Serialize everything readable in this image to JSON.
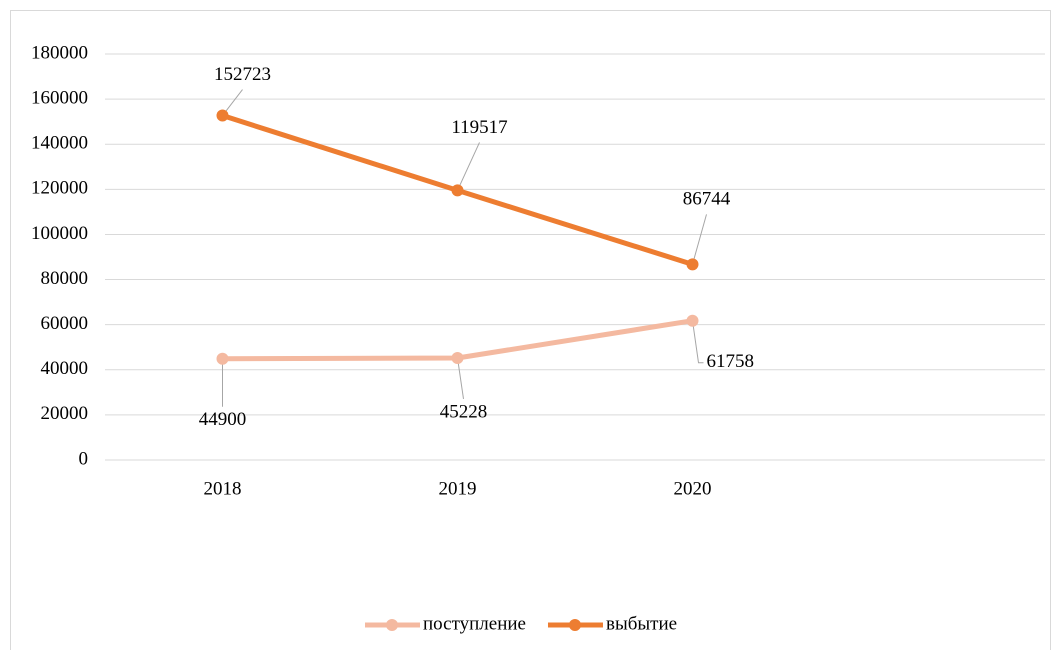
{
  "chart_data": {
    "type": "line",
    "categories": [
      "2018",
      "2019",
      "2020",
      null
    ],
    "series": [
      {
        "name": "поступление",
        "color": "#f4b9a0",
        "values": [
          44900,
          45228,
          61758,
          null
        ]
      },
      {
        "name": "выбытие",
        "color": "#ed7d31",
        "values": [
          152723,
          119517,
          86744,
          null
        ]
      }
    ],
    "ylim": [
      0,
      180000
    ],
    "yticks": [
      0,
      20000,
      40000,
      60000,
      80000,
      100000,
      120000,
      140000,
      160000,
      180000
    ],
    "grid": true,
    "legend": "bottom"
  }
}
